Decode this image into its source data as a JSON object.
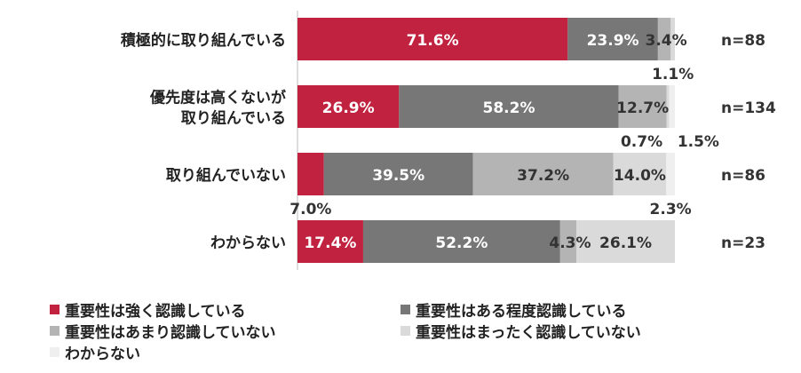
{
  "chart_data": {
    "type": "bar",
    "orientation": "horizontal",
    "stacked": true,
    "xlim": [
      0,
      100
    ],
    "grid": false,
    "legend_position": "bottom",
    "categories": [
      "積極的に取り組んでいる",
      "優先度は高くないが\n取り組んでいる",
      "取り組んでいない",
      "わからない"
    ],
    "n_labels": [
      "n=88",
      "n=134",
      "n=86",
      "n=23"
    ],
    "series": [
      {
        "name": "重要性は強く認識している",
        "color": "#C0223F",
        "values": [
          71.6,
          26.9,
          7.0,
          17.4
        ]
      },
      {
        "name": "重要性はある程度認識している",
        "color": "#777777",
        "values": [
          23.9,
          58.2,
          39.5,
          52.2
        ]
      },
      {
        "name": "重要性はあまり認識していない",
        "color": "#B4B4B4",
        "values": [
          3.4,
          12.7,
          37.2,
          4.3
        ]
      },
      {
        "name": "重要性はまったく認識していない",
        "color": "#DADADA",
        "values": [
          1.1,
          0.7,
          14.0,
          26.1
        ]
      },
      {
        "name": "わからない",
        "color": "#EFEFEF",
        "values": [
          0,
          1.5,
          2.3,
          0
        ]
      }
    ],
    "value_labels": [
      [
        "71.6%",
        "23.9%",
        "3.4%",
        "1.1%",
        ""
      ],
      [
        "26.9%",
        "58.2%",
        "12.7%",
        "0.7%",
        "1.5%"
      ],
      [
        "7.0%",
        "39.5%",
        "37.2%",
        "14.0%",
        "2.3%"
      ],
      [
        "17.4%",
        "52.2%",
        "4.3%",
        "26.1%",
        ""
      ]
    ]
  }
}
